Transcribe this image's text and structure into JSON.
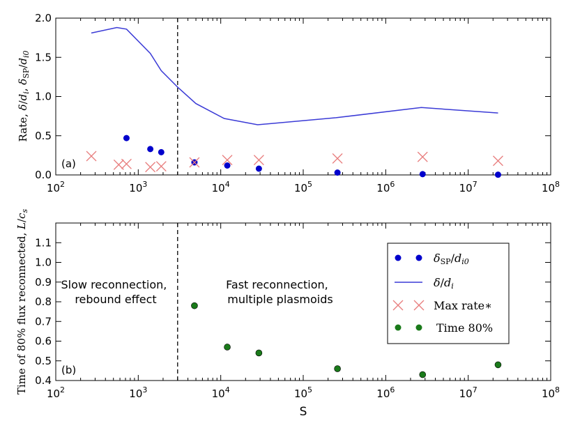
{
  "chart_data": [
    {
      "panel": "(a)",
      "type": "line",
      "ylabel": "Rate, δ/d_i, δ_SP/d_i0",
      "ylim": [
        0,
        2.0
      ],
      "yticks": [
        "0.0",
        "0.5",
        "1.0",
        "1.5",
        "2.0"
      ],
      "xscale": "log",
      "xlim": [
        100,
        100000000
      ],
      "xticks": [
        "10^2",
        "10^3",
        "10^4",
        "10^5",
        "10^6",
        "10^7",
        "10^8"
      ],
      "vline_x": 3000,
      "series": [
        {
          "name": "δ/d_i",
          "kind": "line",
          "color": "#3a3ad6",
          "x": [
            270,
            550,
            720,
            1400,
            1900,
            3000,
            5000,
            11000,
            28000,
            250000,
            2700000,
            23000000
          ],
          "y": [
            1.81,
            1.88,
            1.86,
            1.55,
            1.33,
            1.12,
            0.91,
            0.72,
            0.64,
            0.73,
            0.86,
            0.79
          ]
        },
        {
          "name": "δ_SP/d_i0",
          "kind": "dots",
          "color": "#0000cc",
          "x": [
            720,
            1400,
            1900,
            4800,
            12000,
            29000,
            260000,
            2800000,
            23000000
          ],
          "y": [
            0.47,
            0.33,
            0.29,
            0.16,
            0.12,
            0.08,
            0.03,
            0.01,
            0.003
          ]
        },
        {
          "name": "Max rate *",
          "kind": "x",
          "color": "#e87e7e",
          "x": [
            270,
            580,
            720,
            1400,
            1900,
            4800,
            12000,
            29000,
            260000,
            2800000,
            23000000
          ],
          "y": [
            0.24,
            0.13,
            0.14,
            0.1,
            0.11,
            0.16,
            0.19,
            0.19,
            0.21,
            0.23,
            0.18
          ]
        }
      ]
    },
    {
      "panel": "(b)",
      "type": "scatter",
      "xlabel": "S",
      "ylabel": "Time of 80% flux reconnected, L/c_s",
      "ylim": [
        0.4,
        1.2
      ],
      "yticks": [
        "0.4",
        "0.5",
        "0.6",
        "0.7",
        "0.8",
        "0.9",
        "1.0",
        "1.1"
      ],
      "xscale": "log",
      "xlim": [
        100,
        100000000
      ],
      "xticks": [
        "10^2",
        "10^3",
        "10^4",
        "10^5",
        "10^6",
        "10^7",
        "10^8"
      ],
      "vline_x": 3000,
      "series": [
        {
          "name": "Time 80%",
          "kind": "dots",
          "color": "#1a7a1a",
          "x": [
            4800,
            12000,
            29000,
            260000,
            2800000,
            23000000
          ],
          "y": [
            0.78,
            0.57,
            0.54,
            0.46,
            0.43,
            0.48
          ]
        }
      ],
      "annotations": {
        "slow": [
          "Slow reconnection,",
          "rebound effect"
        ],
        "fast": [
          "Fast reconnection,",
          "multiple plasmoids"
        ]
      },
      "legend": {
        "placement": "right",
        "entries": [
          "δSP/di0",
          "δ/di",
          "Max rate∗",
          "Time 80%"
        ]
      }
    }
  ]
}
